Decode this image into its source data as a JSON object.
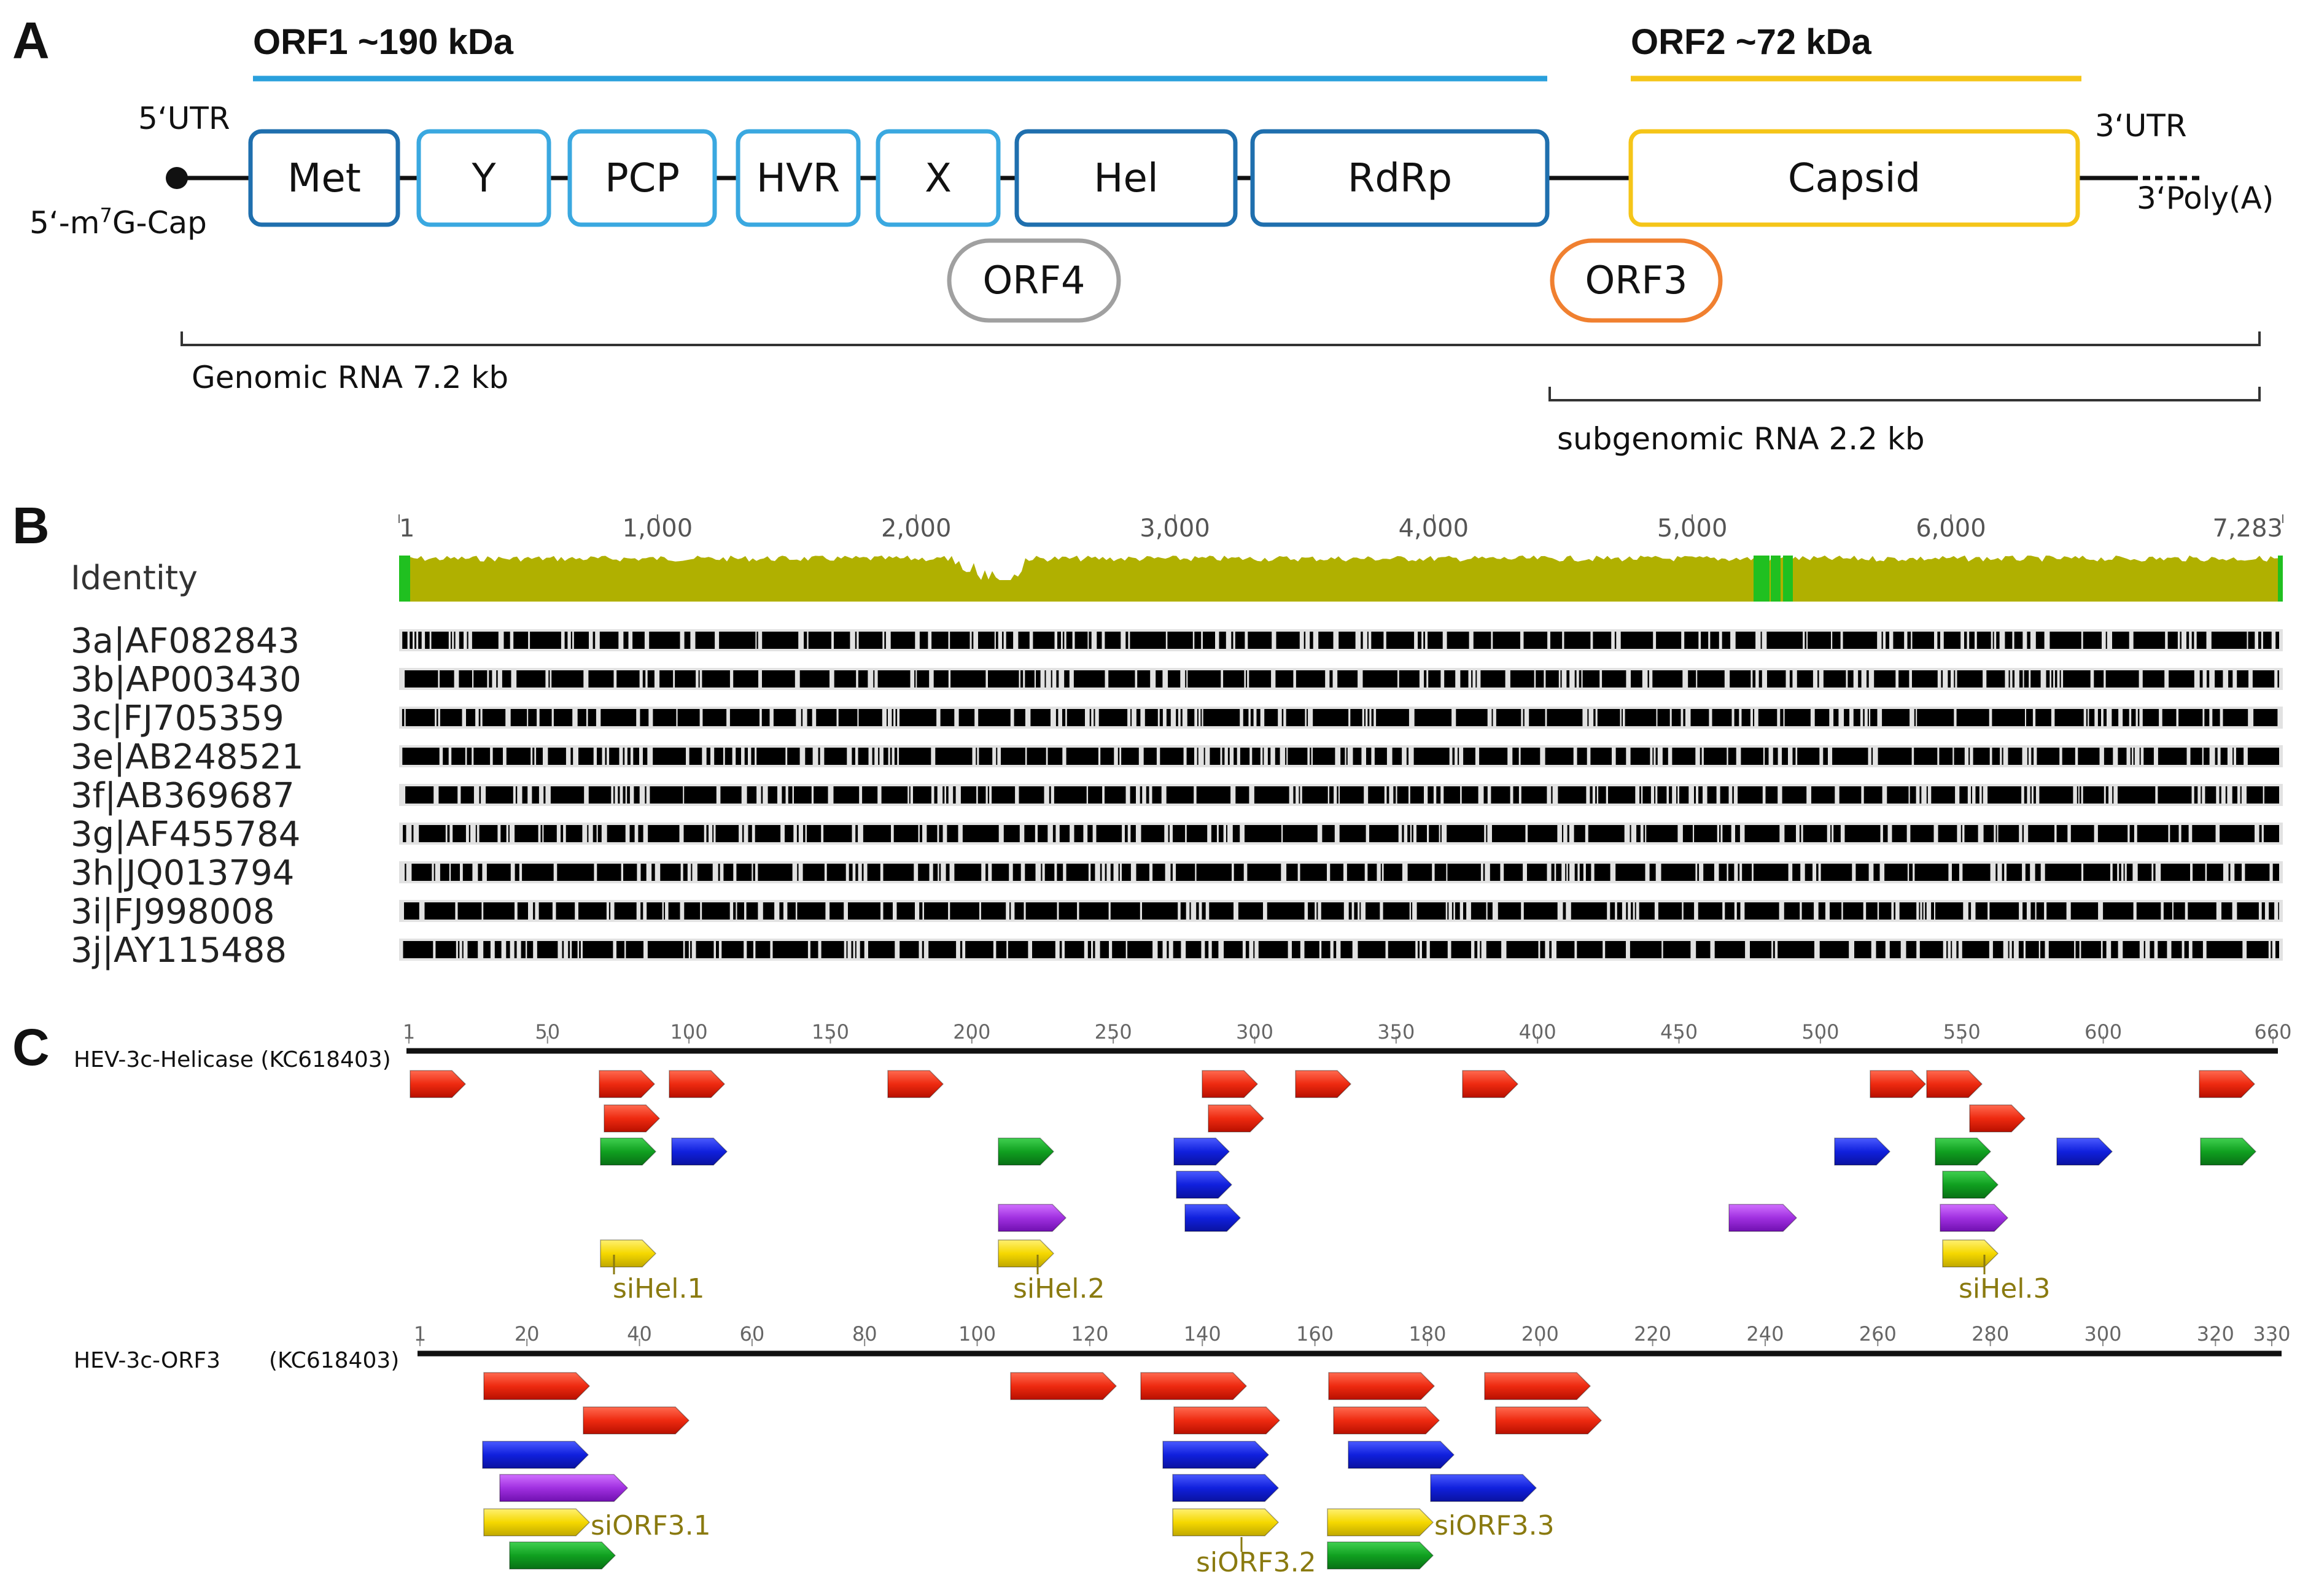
{
  "panels": {
    "a": "A",
    "b": "B",
    "c": "C"
  },
  "panel_a": {
    "orf1_title": "ORF1 ~190 kDa",
    "orf2_title": "ORF2 ~72 kDa",
    "utr5": "5‘UTR",
    "cap_prefix": "5‘-m",
    "cap_sup": "7",
    "cap_suffix": "G-Cap",
    "utr3": "3‘UTR",
    "polya": "3‘Poly(A)",
    "domains": [
      "Met",
      "Y",
      "PCP",
      "HVR",
      "X",
      "Hel",
      "RdRp"
    ],
    "capsid": "Capsid",
    "orf4": "ORF4",
    "orf3": "ORF3",
    "genomic": "Genomic RNA  7.2 kb",
    "subgenomic": "subgenomic RNA  2.2 kb",
    "colors": {
      "orf1": "#2aa0dc",
      "orf2": "#f5c518",
      "dark_blue": "#1f6fae",
      "light_blue": "#3aa8e0",
      "orf4": "#a0a0a0",
      "orf3": "#f08030"
    }
  },
  "panel_b": {
    "identity_label": "Identity",
    "ruler_ticks": [
      "1",
      "1,000",
      "2,000",
      "3,000",
      "4,000",
      "5,000",
      "6,000",
      "7,283"
    ],
    "ruler_values": [
      1,
      1000,
      2000,
      3000,
      4000,
      5000,
      6000,
      7283
    ],
    "sequences": [
      "3a|AF082843",
      "3b|AP003430",
      "3c|FJ705359",
      "3e|AB248521",
      "3f|AB369687",
      "3g|AF455784",
      "3h|JQ013794",
      "3i|FJ998008",
      "3j|AY115488"
    ],
    "colors": {
      "identity": "#b0b000",
      "green": "#20c020"
    }
  },
  "panel_c": {
    "helicase": {
      "label": "HEV-3c-Helicase (KC618403)",
      "ticks": [
        "1",
        "50",
        "100",
        "150",
        "200",
        "250",
        "300",
        "350",
        "400",
        "450",
        "500",
        "550",
        "600",
        "660"
      ],
      "tick_values": [
        1,
        50,
        100,
        150,
        200,
        250,
        300,
        350,
        400,
        450,
        500,
        550,
        600,
        660
      ],
      "max": 660,
      "si_labels": [
        "siHel.1",
        "siHel.2",
        "siHel.3"
      ]
    },
    "orf3": {
      "label": "HEV-3c-ORF3",
      "label_acc": "(KC618403)",
      "ticks": [
        "1",
        "20",
        "40",
        "60",
        "80",
        "100",
        "120",
        "140",
        "160",
        "180",
        "200",
        "220",
        "240",
        "260",
        "280",
        "300",
        "320",
        "330"
      ],
      "tick_values": [
        1,
        20,
        40,
        60,
        80,
        100,
        120,
        140,
        160,
        180,
        200,
        220,
        240,
        260,
        280,
        300,
        320,
        330
      ],
      "max": 330,
      "si_labels": [
        "siORF3.1",
        "siORF3.2",
        "siORF3.3"
      ]
    },
    "colors": {
      "red": "#ee2a10",
      "blue": "#1020dd",
      "green": "#10a020",
      "purple": "#a030e0",
      "yellow": "#f5d800"
    }
  }
}
